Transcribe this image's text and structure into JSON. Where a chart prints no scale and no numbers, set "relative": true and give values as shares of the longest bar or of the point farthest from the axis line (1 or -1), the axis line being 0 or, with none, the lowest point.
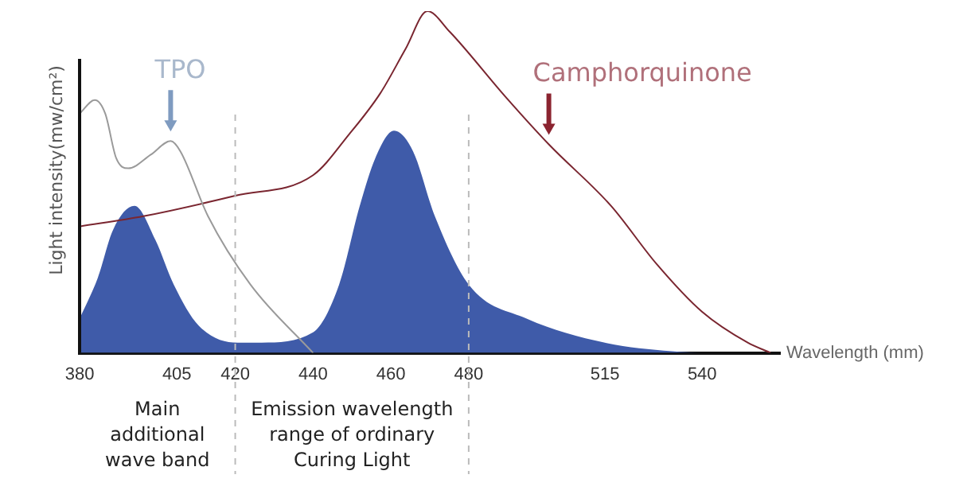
{
  "chart_data": {
    "type": "line",
    "relative": true,
    "xlabel": "Wavelength (mm)",
    "ylabel": "Light intensity(mw/cm²)",
    "xlim": [
      380,
      560
    ],
    "xticks": [
      380,
      405,
      420,
      440,
      460,
      480,
      515,
      540
    ],
    "series": [
      {
        "type": "area",
        "color": "#3f5ba9",
        "x": [
          380,
          384.7,
          388.6,
          394.1,
          399.5,
          404.2,
          410.6,
          420.6,
          426.8,
          440,
          446.7,
          452,
          456,
          460.8,
          465.7,
          471.3,
          480,
          495,
          515,
          532.2,
          540
        ],
        "values": [
          0.1,
          0.22,
          0.36,
          0.43,
          0.33,
          0.2,
          0.08,
          0.03,
          0.03,
          0.06,
          0.2,
          0.43,
          0.57,
          0.65,
          0.59,
          0.4,
          0.2,
          0.1,
          0.03,
          0.005,
          0
        ]
      },
      {
        "color": "#9a9a9a",
        "x": [
          380,
          383.9,
          386.6,
          389.4,
          392.5,
          398.3,
          403.4,
          405.9,
          413,
          423.9,
          440
        ],
        "values": [
          0.7,
          0.74,
          0.7,
          0.57,
          0.54,
          0.58,
          0.62,
          0.59,
          0.4,
          0.2,
          0
        ]
      },
      {
        "color": "#7a2630",
        "x": [
          380,
          396.4,
          420,
          440,
          449.3,
          457.3,
          463.8,
          469.4,
          475.1,
          489.4,
          500.6,
          516.6,
          528.3,
          540,
          551.7,
          557.6
        ],
        "values": [
          0.37,
          0.4,
          0.46,
          0.52,
          0.64,
          0.76,
          0.89,
          1,
          0.94,
          0.75,
          0.61,
          0.43,
          0.26,
          0.12,
          0.03,
          0
        ]
      }
    ],
    "ref_lines": [
      {
        "axis": "x",
        "value": 420,
        "line_style": "dashed",
        "color": "#bbbbbb"
      },
      {
        "axis": "x",
        "value": 480,
        "line_style": "dashed",
        "color": "#bbbbbb"
      }
    ],
    "annotations": [
      {
        "text": "TPO",
        "x": 403.4,
        "y": 0.62
      },
      {
        "text": "Camphorquinone",
        "x": 500.6,
        "y": 0.61
      },
      "Main additional wave band",
      "Emission wavelength range of ordinary Curing Light"
    ],
    "legend": false,
    "grid": false,
    "marker": "none",
    "line_style": "solid"
  }
}
